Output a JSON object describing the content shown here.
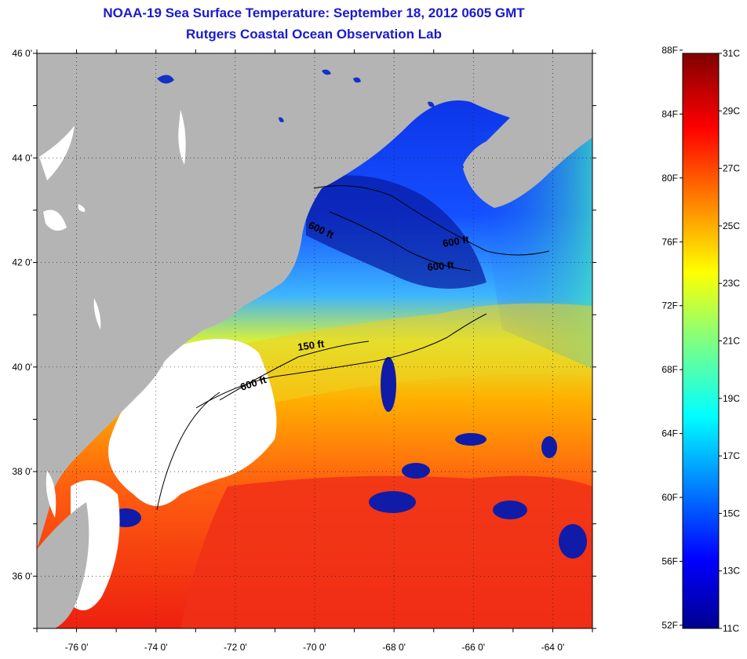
{
  "title": {
    "line1": "NOAA-19 Sea Surface Temperature:  September 18, 2012 0605 GMT",
    "line2": "Rutgers Coastal Ocean Observation Lab"
  },
  "map": {
    "lon_ticks": [
      "-76 0'",
      "-74 0'",
      "-72 0'",
      "-70 0'",
      "-68 0'",
      "-66 0'",
      "-64 0'"
    ],
    "lat_ticks": [
      "46 0'",
      "44 0'",
      "42 0'",
      "40 0'",
      "38 0'",
      "36 0'"
    ],
    "lon_range": [
      -77,
      -63
    ],
    "lat_range": [
      35,
      46
    ],
    "contour_labels": [
      "600 ft",
      "600 ft",
      "600 ft",
      "150 ft",
      "600 ft"
    ],
    "colors": {
      "land": "#b4b4b4",
      "cloud": "#ffffff",
      "frame": "#000000"
    }
  },
  "colorbar": {
    "fahrenheit_labels": [
      "88F",
      "84F",
      "80F",
      "76F",
      "72F",
      "68F",
      "64F",
      "60F",
      "56F",
      "52F"
    ],
    "celsius_labels": [
      "31C",
      "29C",
      "27C",
      "25C",
      "23C",
      "21C",
      "19C",
      "17C",
      "15C",
      "13C",
      "11C"
    ],
    "range_c": [
      11,
      31
    ],
    "colormap": "jet"
  }
}
